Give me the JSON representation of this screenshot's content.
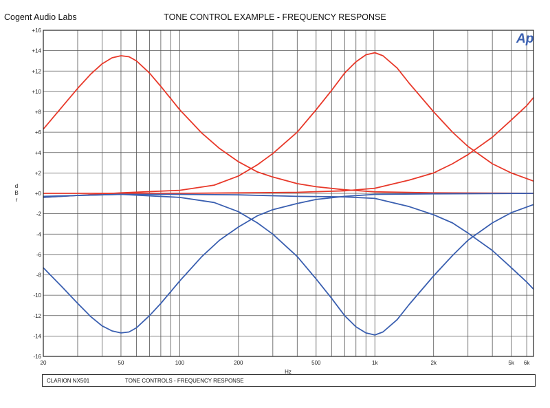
{
  "header": {
    "company": "Cogent Audio Labs",
    "title": "TONE CONTROL EXAMPLE  -  FREQUENCY RESPONSE"
  },
  "logo": "Ap",
  "footer": {
    "left": "CLARION NX501",
    "right": "TONE CONTROLS   -   FREQUENCY RESPONSE"
  },
  "colors": {
    "boost": "#e8392a",
    "cut": "#3a5fb0",
    "grid": "#555555"
  },
  "chart_data": {
    "type": "line",
    "title": "TONE CONTROL EXAMPLE  -  FREQUENCY RESPONSE",
    "xlabel": "Hz",
    "ylabel": "dBr",
    "x_scale": "log",
    "xlim": [
      20,
      6500
    ],
    "ylim": [
      -16,
      16
    ],
    "grid": true,
    "x_ticks": [
      {
        "v": 20,
        "label": "20"
      },
      {
        "v": 50,
        "label": "50"
      },
      {
        "v": 100,
        "label": "100"
      },
      {
        "v": 200,
        "label": "200"
      },
      {
        "v": 500,
        "label": "500"
      },
      {
        "v": 1000,
        "label": "1k"
      },
      {
        "v": 2000,
        "label": "2k"
      },
      {
        "v": 5000,
        "label": "5k"
      },
      {
        "v": 6000,
        "label": "6k"
      }
    ],
    "y_ticks": [
      {
        "v": 16,
        "label": "+16"
      },
      {
        "v": 14,
        "label": "+14"
      },
      {
        "v": 12,
        "label": "+12"
      },
      {
        "v": 10,
        "label": "+10"
      },
      {
        "v": 8,
        "label": "+8"
      },
      {
        "v": 6,
        "label": "+6"
      },
      {
        "v": 4,
        "label": "+4"
      },
      {
        "v": 2,
        "label": "+2"
      },
      {
        "v": 0,
        "label": "+0"
      },
      {
        "v": -2,
        "label": "-2"
      },
      {
        "v": -4,
        "label": "-4"
      },
      {
        "v": -6,
        "label": "-6"
      },
      {
        "v": -8,
        "label": "-8"
      },
      {
        "v": -10,
        "label": "-10"
      },
      {
        "v": -12,
        "label": "-12"
      },
      {
        "v": -14,
        "label": "-14"
      },
      {
        "v": -16,
        "label": "-16"
      }
    ],
    "series": [
      {
        "color": "#e8392a",
        "points": [
          [
            20,
            6.3
          ],
          [
            25,
            8.5
          ],
          [
            30,
            10.3
          ],
          [
            35,
            11.7
          ],
          [
            40,
            12.7
          ],
          [
            45,
            13.3
          ],
          [
            50,
            13.5
          ],
          [
            55,
            13.4
          ],
          [
            60,
            13.0
          ],
          [
            70,
            11.8
          ],
          [
            80,
            10.5
          ],
          [
            100,
            8.2
          ],
          [
            130,
            5.9
          ],
          [
            160,
            4.4
          ],
          [
            200,
            3.1
          ],
          [
            250,
            2.1
          ],
          [
            300,
            1.6
          ],
          [
            400,
            0.95
          ],
          [
            500,
            0.65
          ],
          [
            700,
            0.35
          ],
          [
            1000,
            0.15
          ],
          [
            2000,
            0.05
          ],
          [
            6500,
            0
          ]
        ]
      },
      {
        "color": "#e8392a",
        "points": [
          [
            20,
            -0.4
          ],
          [
            50,
            0.05
          ],
          [
            100,
            0.3
          ],
          [
            150,
            0.8
          ],
          [
            200,
            1.7
          ],
          [
            250,
            2.8
          ],
          [
            300,
            3.9
          ],
          [
            400,
            6.0
          ],
          [
            500,
            8.2
          ],
          [
            600,
            10.1
          ],
          [
            700,
            11.8
          ],
          [
            800,
            12.9
          ],
          [
            900,
            13.6
          ],
          [
            1000,
            13.8
          ],
          [
            1100,
            13.5
          ],
          [
            1300,
            12.3
          ],
          [
            1500,
            10.8
          ],
          [
            2000,
            8.0
          ],
          [
            2500,
            6.0
          ],
          [
            3000,
            4.6
          ],
          [
            4000,
            2.9
          ],
          [
            5000,
            2.0
          ],
          [
            6500,
            1.2
          ]
        ]
      },
      {
        "color": "#e8392a",
        "points": [
          [
            20,
            0
          ],
          [
            100,
            0
          ],
          [
            200,
            0.05
          ],
          [
            400,
            0.1
          ],
          [
            700,
            0.25
          ],
          [
            1000,
            0.5
          ],
          [
            1500,
            1.3
          ],
          [
            2000,
            2.0
          ],
          [
            2500,
            2.9
          ],
          [
            3000,
            3.8
          ],
          [
            4000,
            5.5
          ],
          [
            5000,
            7.2
          ],
          [
            6000,
            8.6
          ],
          [
            6500,
            9.4
          ]
        ]
      },
      {
        "color": "#3a5fb0",
        "points": [
          [
            20,
            -7.3
          ],
          [
            25,
            -9.2
          ],
          [
            30,
            -10.8
          ],
          [
            35,
            -12.1
          ],
          [
            40,
            -13.0
          ],
          [
            45,
            -13.5
          ],
          [
            50,
            -13.7
          ],
          [
            55,
            -13.6
          ],
          [
            60,
            -13.2
          ],
          [
            70,
            -12.0
          ],
          [
            80,
            -10.8
          ],
          [
            100,
            -8.6
          ],
          [
            130,
            -6.2
          ],
          [
            160,
            -4.6
          ],
          [
            200,
            -3.3
          ],
          [
            250,
            -2.2
          ],
          [
            300,
            -1.6
          ],
          [
            400,
            -1.0
          ],
          [
            500,
            -0.6
          ],
          [
            700,
            -0.3
          ],
          [
            1000,
            -0.1
          ],
          [
            2000,
            -0.05
          ],
          [
            6500,
            0
          ]
        ]
      },
      {
        "color": "#3a5fb0",
        "points": [
          [
            20,
            -0.3
          ],
          [
            50,
            -0.1
          ],
          [
            100,
            -0.4
          ],
          [
            150,
            -0.9
          ],
          [
            200,
            -1.8
          ],
          [
            250,
            -2.9
          ],
          [
            300,
            -4.0
          ],
          [
            400,
            -6.2
          ],
          [
            500,
            -8.4
          ],
          [
            600,
            -10.3
          ],
          [
            700,
            -12.0
          ],
          [
            800,
            -13.1
          ],
          [
            900,
            -13.7
          ],
          [
            1000,
            -13.9
          ],
          [
            1100,
            -13.6
          ],
          [
            1300,
            -12.4
          ],
          [
            1500,
            -10.9
          ],
          [
            2000,
            -8.1
          ],
          [
            2500,
            -6.1
          ],
          [
            3000,
            -4.6
          ],
          [
            4000,
            -2.9
          ],
          [
            5000,
            -1.9
          ],
          [
            6500,
            -1.1
          ]
        ]
      },
      {
        "color": "#3a5fb0",
        "points": [
          [
            20,
            -0.4
          ],
          [
            30,
            -0.2
          ],
          [
            50,
            -0.1
          ],
          [
            100,
            -0.1
          ],
          [
            200,
            -0.15
          ],
          [
            400,
            -0.3
          ],
          [
            700,
            -0.35
          ],
          [
            1000,
            -0.5
          ],
          [
            1500,
            -1.3
          ],
          [
            2000,
            -2.1
          ],
          [
            2500,
            -2.9
          ],
          [
            3000,
            -3.9
          ],
          [
            4000,
            -5.6
          ],
          [
            5000,
            -7.3
          ],
          [
            6000,
            -8.7
          ],
          [
            6500,
            -9.4
          ]
        ]
      }
    ]
  }
}
